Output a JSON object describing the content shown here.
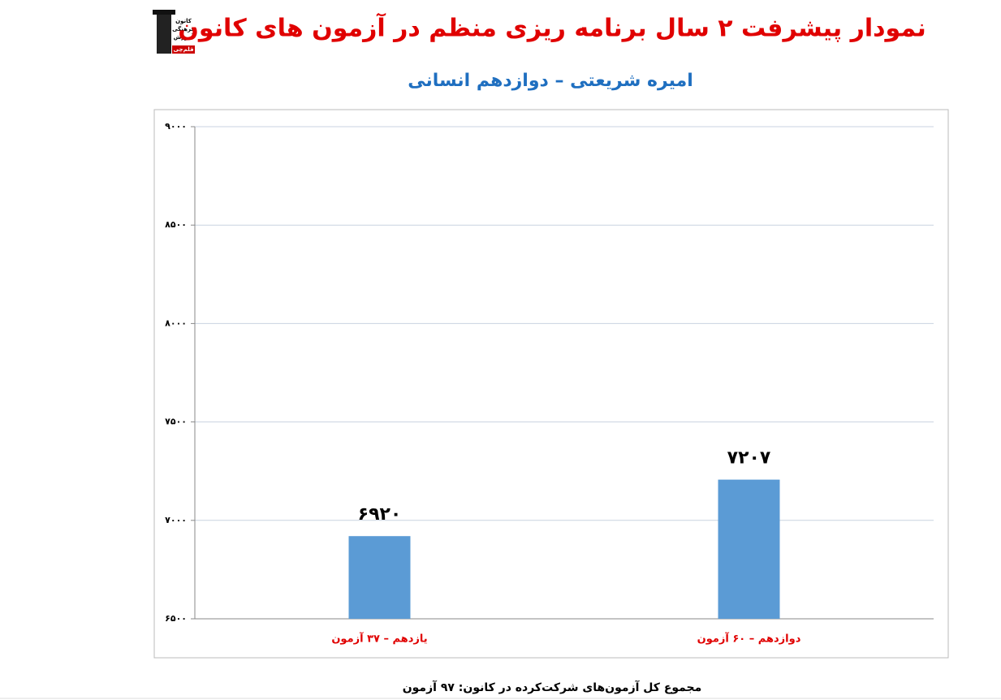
{
  "logo": {
    "lines": [
      "کانون",
      "فرهنگی",
      "آموزش",
      "قلم‌چی"
    ]
  },
  "chart_data": {
    "type": "bar",
    "title": "نمودار پیشرفت ۲ سال برنامه ریزی منظم در آزمون های کانون",
    "subtitle": "امیره شریعتی – دوازدهم انسانی",
    "categories": [
      "یازدهم – ۳۷ آزمون",
      "دوازدهم – ۶۰ آزمون"
    ],
    "values": [
      6920,
      7207
    ],
    "value_labels": [
      "۶۹۲۰",
      "۷۲۰۷"
    ],
    "color": "#5b9bd5",
    "ylim": [
      6500,
      9000
    ],
    "yticks": [
      {
        "value": 6500,
        "label": "۶۵۰۰"
      },
      {
        "value": 7000,
        "label": "۷۰۰۰"
      },
      {
        "value": 7500,
        "label": "۷۵۰۰"
      },
      {
        "value": 8000,
        "label": "۸۰۰۰"
      },
      {
        "value": 8500,
        "label": "۸۵۰۰"
      },
      {
        "value": 9000,
        "label": "۹۰۰۰"
      }
    ],
    "grid": true,
    "footnote": "مجموع کل آزمون‌های شرکت‌کرده در کانون: ۹۷ آزمون"
  }
}
